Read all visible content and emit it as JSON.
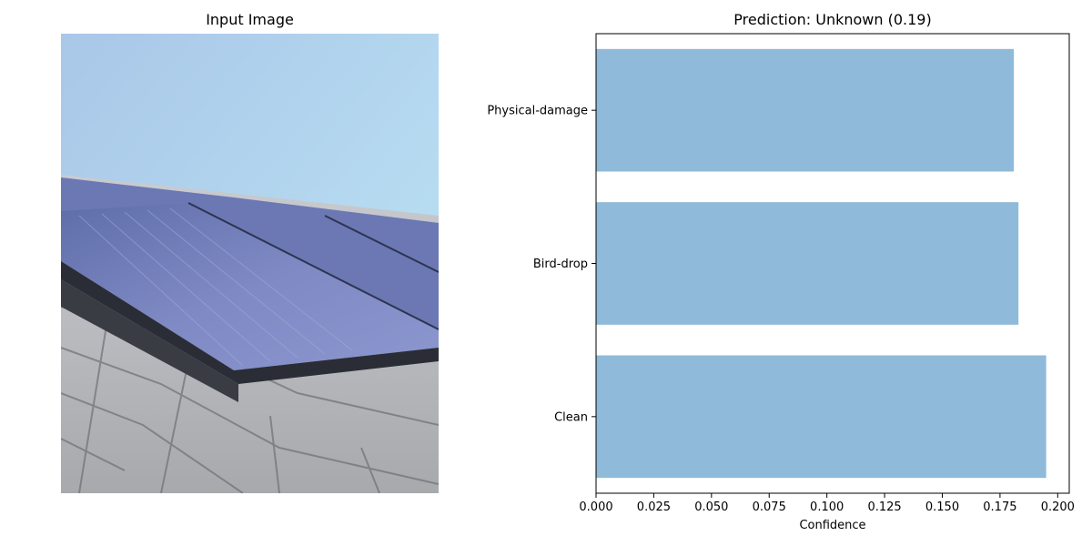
{
  "left_panel": {
    "title": "Input Image",
    "image_subject": "rooftop solar panels on shingle roof under blue sky"
  },
  "chart_data": {
    "type": "bar",
    "orientation": "horizontal",
    "title": "Prediction: Unknown (0.19)",
    "xlabel": "Confidence",
    "ylabel": "",
    "categories": [
      "Clean",
      "Bird-drop",
      "Physical-damage"
    ],
    "values": [
      0.195,
      0.183,
      0.181
    ],
    "xlim": [
      0,
      0.205
    ],
    "xticks": [
      "0.000",
      "0.025",
      "0.050",
      "0.075",
      "0.100",
      "0.125",
      "0.150",
      "0.175",
      "0.200"
    ],
    "bar_color": "#8fbad9",
    "grid": false
  }
}
